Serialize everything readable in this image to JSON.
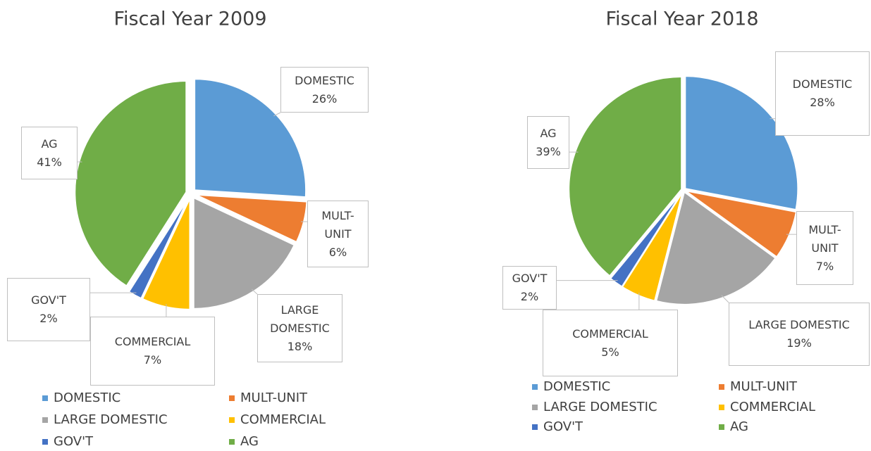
{
  "chart_data": [
    {
      "type": "pie",
      "title": "Fiscal Year 2009",
      "categories": [
        "DOMESTIC",
        "MULT-UNIT",
        "LARGE DOMESTIC",
        "COMMERCIAL",
        "GOV'T",
        "AG"
      ],
      "values": [
        26,
        6,
        18,
        7,
        2,
        41
      ],
      "value_labels": [
        "26%",
        "6%",
        "18%",
        "7%",
        "2%",
        "41%"
      ],
      "colors": [
        "#5b9bd5",
        "#ed7d31",
        "#a5a5a5",
        "#ffc000",
        "#4472c4",
        "#70ad47"
      ],
      "legend": "bottom"
    },
    {
      "type": "pie",
      "title": "Fiscal Year 2018",
      "categories": [
        "DOMESTIC",
        "MULT-UNIT",
        "LARGE DOMESTIC",
        "COMMERCIAL",
        "GOV'T",
        "AG"
      ],
      "values": [
        28,
        7,
        19,
        5,
        2,
        39
      ],
      "value_labels": [
        "28%",
        "7%",
        "19%",
        "5%",
        "2%",
        "39%"
      ],
      "colors": [
        "#5b9bd5",
        "#ed7d31",
        "#a5a5a5",
        "#ffc000",
        "#4472c4",
        "#70ad47"
      ],
      "legend": "bottom"
    }
  ]
}
